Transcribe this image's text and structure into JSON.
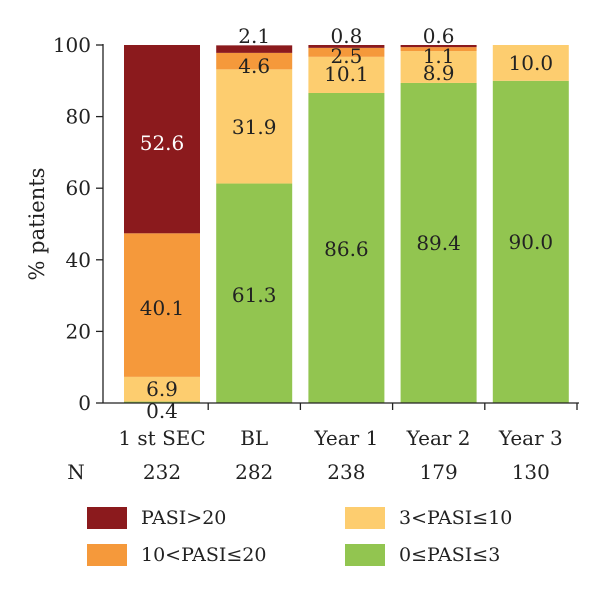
{
  "chart_data": {
    "type": "bar",
    "stacked": true,
    "categories": [
      "1 st SEC",
      "BL",
      "Year 1",
      "Year 2",
      "Year 3"
    ],
    "n_label": "N",
    "n_values": [
      "232",
      "282",
      "238",
      "179",
      "130"
    ],
    "ylabel": "% patients",
    "ylim": [
      0,
      100
    ],
    "yticks": [
      0,
      20,
      40,
      60,
      80,
      100
    ],
    "grid": false,
    "legend_position": "bottom",
    "series": [
      {
        "name": "0≤PASI≤3",
        "color": "#92c550",
        "values": [
          0.4,
          61.3,
          86.6,
          89.4,
          90.0
        ],
        "labels": [
          "0.4",
          "61.3",
          "86.6",
          "89.4",
          "90.0"
        ]
      },
      {
        "name": "3<PASI≤10",
        "color": "#fdcd6f",
        "values": [
          6.9,
          31.9,
          10.1,
          8.9,
          10.0
        ],
        "labels": [
          "6.9",
          "31.9",
          "10.1",
          "8.9",
          "10.0"
        ]
      },
      {
        "name": "10<PASI≤20",
        "color": "#f5993b",
        "values": [
          40.1,
          4.6,
          2.5,
          1.1,
          0
        ],
        "labels": [
          "40.1",
          "4.6",
          "2.5",
          "1.1",
          ""
        ]
      },
      {
        "name": "PASI>20",
        "color": "#8b1a1d",
        "values": [
          52.6,
          2.1,
          0.8,
          0.6,
          0
        ],
        "labels": [
          "52.6",
          "2.1",
          "0.8",
          "0.6",
          ""
        ]
      }
    ]
  }
}
